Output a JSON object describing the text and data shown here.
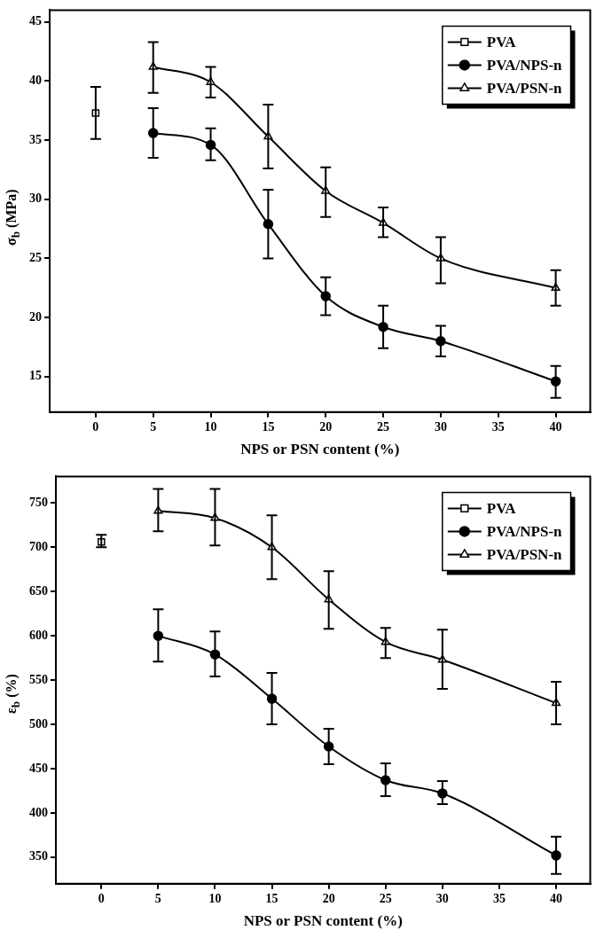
{
  "chart_data": [
    {
      "type": "line",
      "xlabel": "NPS or PSN content (%)",
      "ylabel": "σ$_{b}$ (MPa)",
      "xlim": [
        -4,
        43
      ],
      "xticks": [
        0,
        5,
        10,
        15,
        20,
        25,
        30,
        35,
        40
      ],
      "ylim": [
        12,
        46
      ],
      "yticks": [
        15,
        20,
        25,
        30,
        35,
        40,
        45
      ],
      "grid": false,
      "legend": "top right",
      "line_style": "solid",
      "series": [
        {
          "name": "PVA",
          "type": "scatter",
          "marker": "square",
          "color": "#000000",
          "x": [
            0
          ],
          "values": [
            37.3
          ],
          "errors": [
            [
              35.1,
              39.5
            ]
          ]
        },
        {
          "name": "PVA/NPS-n",
          "type": "line",
          "marker": "circle",
          "color": "#000000",
          "x": [
            5,
            10,
            15,
            20,
            25,
            30,
            40
          ],
          "values": [
            35.6,
            34.6,
            27.9,
            21.8,
            19.2,
            18.0,
            14.6
          ],
          "errors": [
            [
              33.5,
              37.7
            ],
            [
              33.3,
              36.0
            ],
            [
              25.0,
              30.8
            ],
            [
              20.2,
              23.4
            ],
            [
              17.4,
              21.0
            ],
            [
              16.7,
              19.3
            ],
            [
              13.2,
              15.9
            ]
          ]
        },
        {
          "name": "PVA/PSN-n",
          "type": "line",
          "marker": "triangle",
          "color": "#000000",
          "x": [
            5,
            10,
            15,
            20,
            25,
            30,
            40
          ],
          "values": [
            41.2,
            39.9,
            35.3,
            30.7,
            28.0,
            25.0,
            22.5
          ],
          "errors": [
            [
              39.0,
              43.3
            ],
            [
              38.6,
              41.2
            ],
            [
              32.6,
              38.0
            ],
            [
              28.5,
              32.7
            ],
            [
              26.8,
              29.3
            ],
            [
              22.9,
              26.8
            ],
            [
              21.0,
              24.0
            ]
          ]
        }
      ]
    },
    {
      "type": "line",
      "xlabel": "NPS or PSN content (%)",
      "ylabel": "ε$_{b}$ (%)",
      "xlim": [
        -4,
        43
      ],
      "xticks": [
        0,
        5,
        10,
        15,
        20,
        25,
        30,
        35,
        40
      ],
      "ylim": [
        320,
        780
      ],
      "yticks": [
        350,
        400,
        450,
        500,
        550,
        600,
        650,
        700,
        750
      ],
      "grid": false,
      "legend": "top right",
      "line_style": "solid",
      "series": [
        {
          "name": "PVA",
          "type": "scatter",
          "marker": "square",
          "color": "#000000",
          "x": [
            0
          ],
          "values": [
            706
          ],
          "errors": [
            [
              700,
              714
            ]
          ]
        },
        {
          "name": "PVA/NPS-n",
          "type": "line",
          "marker": "circle",
          "color": "#000000",
          "x": [
            5,
            10,
            15,
            20,
            25,
            30,
            40
          ],
          "values": [
            600,
            579,
            529,
            475,
            437,
            422,
            352
          ],
          "errors": [
            [
              571,
              630
            ],
            [
              554,
              605
            ],
            [
              500,
              558
            ],
            [
              455,
              495
            ],
            [
              419,
              456
            ],
            [
              410,
              436
            ],
            [
              331,
              373
            ]
          ]
        },
        {
          "name": "PVA/PSN-n",
          "type": "line",
          "marker": "triangle",
          "color": "#000000",
          "x": [
            5,
            10,
            15,
            20,
            25,
            30,
            40
          ],
          "values": [
            741,
            733,
            700,
            641,
            593,
            573,
            524
          ],
          "errors": [
            [
              718,
              766
            ],
            [
              702,
              766
            ],
            [
              664,
              736
            ],
            [
              608,
              673
            ],
            [
              575,
              609
            ],
            [
              540,
              607
            ],
            [
              500,
              548
            ]
          ]
        }
      ]
    }
  ]
}
